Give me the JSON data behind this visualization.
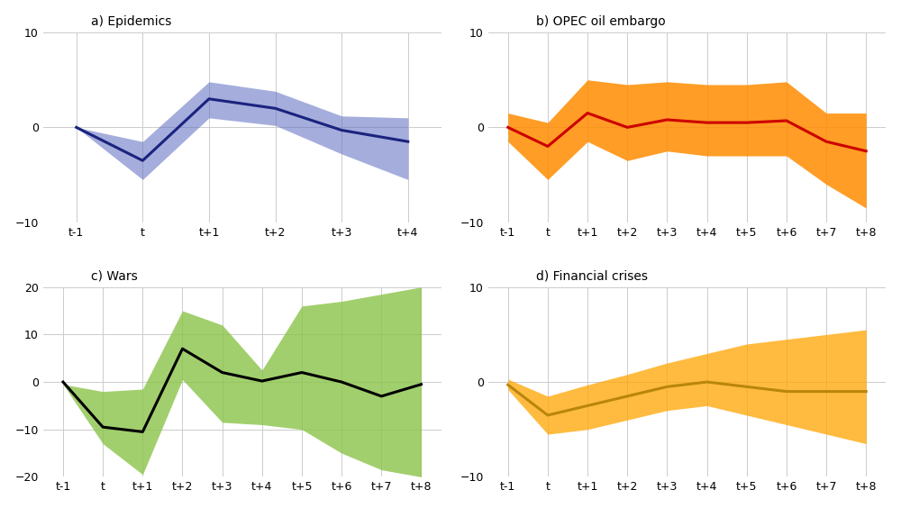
{
  "panels": [
    {
      "title": "a) Epidemics",
      "x_labels": [
        "t-1",
        "t",
        "t+1",
        "t+2",
        "t+3",
        "t+4"
      ],
      "x_vals": [
        0,
        1,
        2,
        3,
        4,
        5
      ],
      "mean": [
        0,
        -3.5,
        3.0,
        2.0,
        -0.3,
        -1.5
      ],
      "upper": [
        0,
        -1.5,
        4.8,
        3.8,
        1.2,
        1.0
      ],
      "lower": [
        0,
        -5.5,
        1.0,
        0.2,
        -2.8,
        -5.5
      ],
      "line_color": "#1a237e",
      "fill_color": "#5c6bc0",
      "fill_alpha": 0.55,
      "ylim": [
        -10,
        10
      ],
      "yticks": [
        -10,
        0,
        10
      ],
      "row": 0,
      "col": 0
    },
    {
      "title": "b) OPEC oil embargo",
      "x_labels": [
        "t-1",
        "t",
        "t+1",
        "t+2",
        "t+3",
        "t+4",
        "t+5",
        "t+6",
        "t+7",
        "t+8"
      ],
      "x_vals": [
        0,
        1,
        2,
        3,
        4,
        5,
        6,
        7,
        8,
        9
      ],
      "mean": [
        0,
        -2.0,
        1.5,
        0.0,
        0.8,
        0.5,
        0.5,
        0.7,
        -1.5,
        -2.5
      ],
      "upper": [
        1.5,
        0.5,
        5.0,
        4.5,
        4.8,
        4.5,
        4.5,
        4.8,
        1.5,
        1.5
      ],
      "lower": [
        -1.5,
        -5.5,
        -1.5,
        -3.5,
        -2.5,
        -3.0,
        -3.0,
        -3.0,
        -6.0,
        -8.5
      ],
      "line_color": "#cc0000",
      "fill_color": "#ff8c00",
      "fill_alpha": 0.85,
      "ylim": [
        -10,
        10
      ],
      "yticks": [
        -10,
        0,
        10
      ],
      "row": 0,
      "col": 1
    },
    {
      "title": "c) Wars",
      "x_labels": [
        "t-1",
        "t",
        "t+1",
        "t+2",
        "t+3",
        "t+4",
        "t+5",
        "t+6",
        "t+7",
        "t+8"
      ],
      "x_vals": [
        0,
        1,
        2,
        3,
        4,
        5,
        6,
        7,
        8,
        9
      ],
      "mean": [
        0,
        -9.5,
        -10.5,
        7.0,
        2.0,
        0.2,
        2.0,
        0.0,
        -3.0,
        -0.5
      ],
      "upper": [
        -0.5,
        -2.0,
        -1.5,
        15.0,
        12.0,
        2.5,
        16.0,
        17.0,
        18.5,
        20.0
      ],
      "lower": [
        -0.5,
        -13.0,
        -19.5,
        0.5,
        -8.5,
        -9.0,
        -10.0,
        -15.0,
        -18.5,
        -20.0
      ],
      "line_color": "#000000",
      "fill_color": "#8bc34a",
      "fill_alpha": 0.8,
      "ylim": [
        -20,
        20
      ],
      "yticks": [
        -20,
        -10,
        0,
        10,
        20
      ],
      "row": 1,
      "col": 0
    },
    {
      "title": "d) Financial crises",
      "x_labels": [
        "t-1",
        "t",
        "t+1",
        "t+2",
        "t+3",
        "t+4",
        "t+5",
        "t+6",
        "t+7",
        "t+8"
      ],
      "x_vals": [
        0,
        1,
        2,
        3,
        4,
        5,
        6,
        7,
        8,
        9
      ],
      "mean": [
        -0.3,
        -3.5,
        -2.5,
        -1.5,
        -0.5,
        0.0,
        -0.5,
        -1.0,
        -1.0,
        -1.0
      ],
      "upper": [
        0.3,
        -1.5,
        -0.3,
        0.8,
        2.0,
        3.0,
        4.0,
        4.5,
        5.0,
        5.5
      ],
      "lower": [
        -0.8,
        -5.5,
        -5.0,
        -4.0,
        -3.0,
        -2.5,
        -3.5,
        -4.5,
        -5.5,
        -6.5
      ],
      "line_color": "#b8860b",
      "fill_color": "#ffa500",
      "fill_alpha": 0.75,
      "ylim": [
        -10,
        10
      ],
      "yticks": [
        -10,
        0,
        10
      ],
      "row": 1,
      "col": 1
    }
  ],
  "background_color": "#ffffff",
  "grid_color": "#cccccc",
  "figsize": [
    10.0,
    5.64
  ]
}
